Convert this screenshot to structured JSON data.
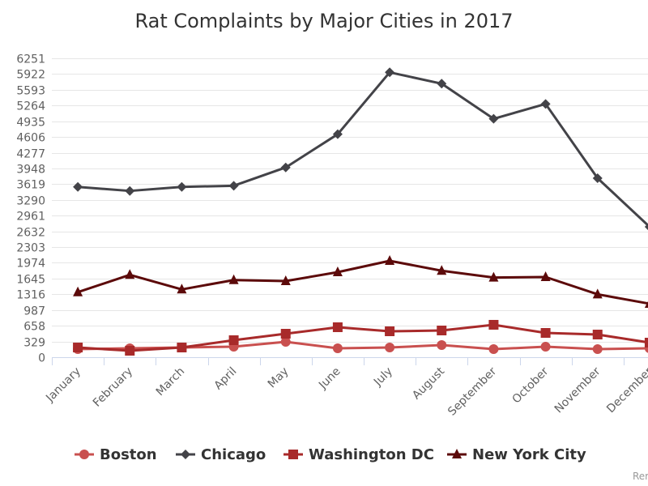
{
  "chart_data": {
    "type": "line",
    "title": "Rat Complaints by Major Cities in 2017",
    "xlabel": "",
    "ylabel": "",
    "categories": [
      "January",
      "February",
      "March",
      "April",
      "May",
      "June",
      "July",
      "August",
      "September",
      "October",
      "November",
      "December"
    ],
    "yticks": [
      0,
      329,
      658,
      987,
      1316,
      1645,
      1974,
      2303,
      2632,
      2961,
      3290,
      3619,
      3948,
      4277,
      4606,
      4935,
      5264,
      5593,
      5922,
      6251
    ],
    "ylim": [
      0,
      6251
    ],
    "grid": true,
    "legend_position": "bottom",
    "series": [
      {
        "name": "Boston",
        "color": "#c9504f",
        "marker": "circle",
        "values": [
          170,
          186,
          203,
          220,
          322,
          186,
          203,
          254,
          169,
          220,
          169,
          186
        ]
      },
      {
        "name": "Chicago",
        "color": "#434348",
        "marker": "diamond",
        "values": [
          3562,
          3478,
          3562,
          3586,
          3969,
          4664,
          5958,
          5721,
          4986,
          5297,
          3744,
          2727
        ]
      },
      {
        "name": "Washington DC",
        "color": "#a82a2a",
        "marker": "square",
        "values": [
          203,
          135,
          203,
          356,
          491,
          627,
          542,
          559,
          678,
          508,
          474,
          305
        ]
      },
      {
        "name": "New York City",
        "color": "#5c0a0a",
        "marker": "triangle",
        "values": [
          1360,
          1723,
          1418,
          1614,
          1592,
          1779,
          2016,
          1808,
          1666,
          1677,
          1316,
          1118
        ]
      }
    ],
    "credits": "Rer"
  }
}
